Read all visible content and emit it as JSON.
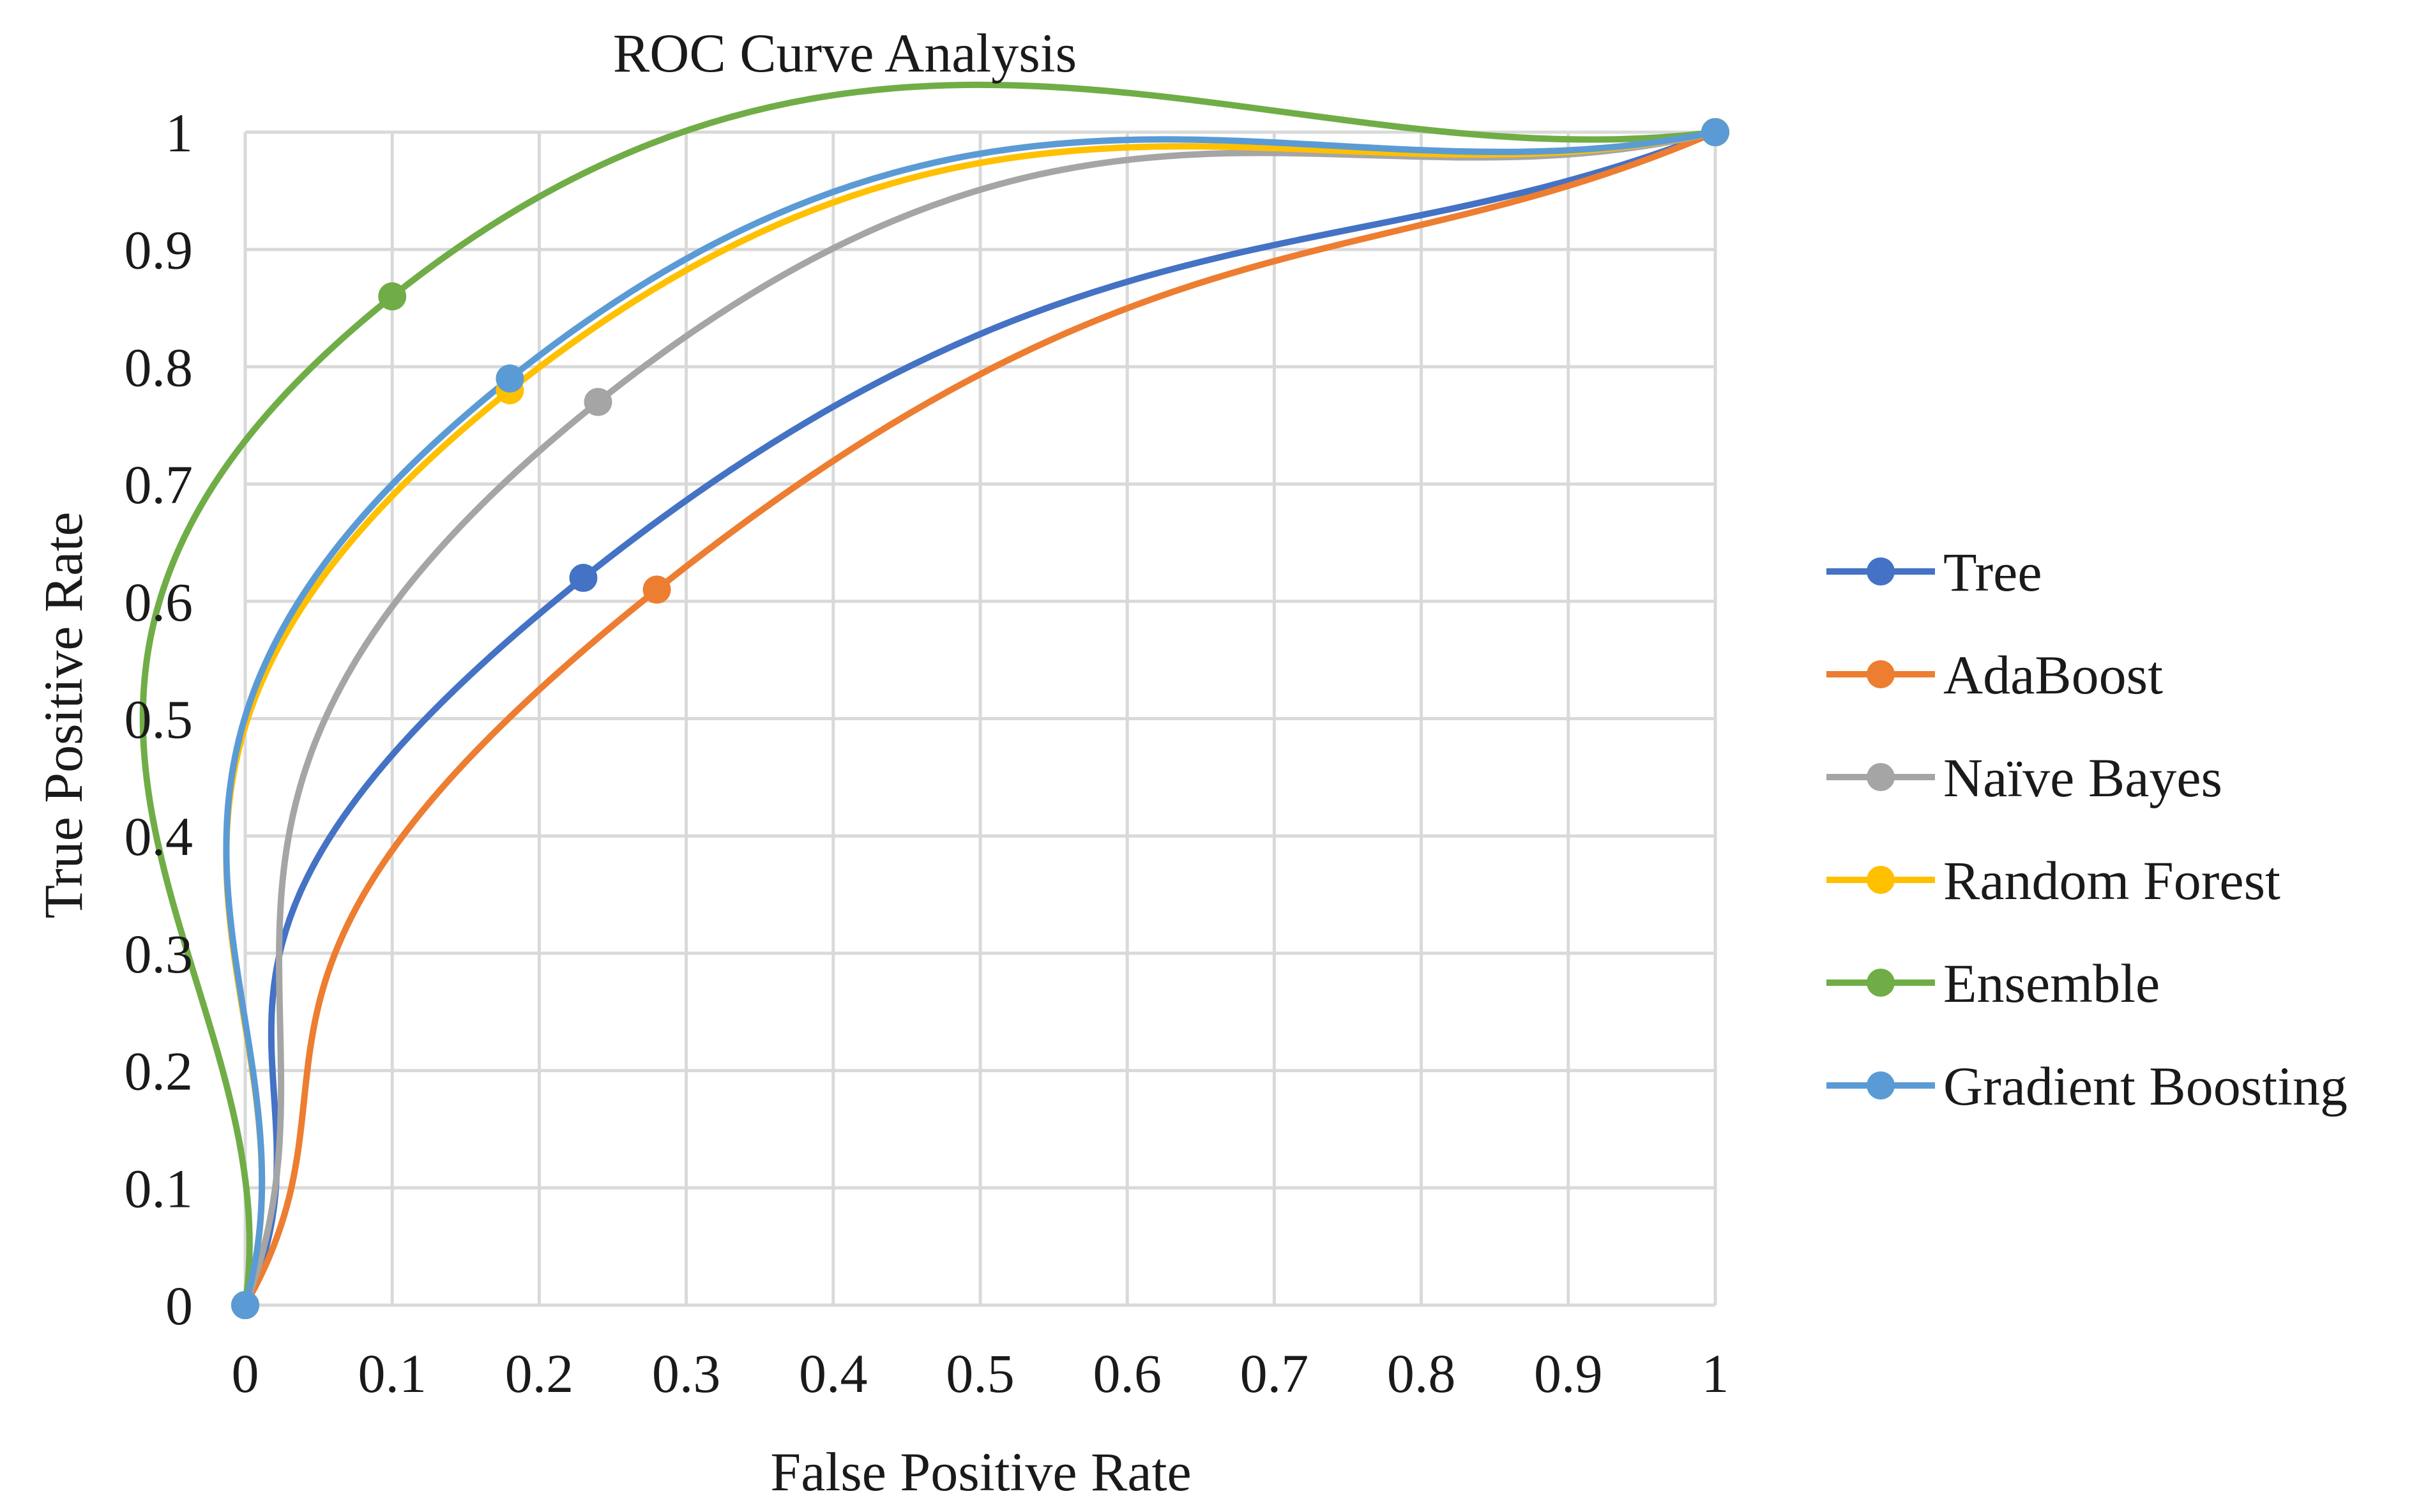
{
  "chart_data": {
    "type": "line",
    "title": "ROC Curve Analysis",
    "xlabel": "False Positive Rate",
    "ylabel": "True Positive Rate",
    "xlim": [
      0,
      1
    ],
    "ylim": [
      0,
      1
    ],
    "grid": true,
    "legend_position": "right",
    "x_ticks": [
      "0",
      "0.1",
      "0.2",
      "0.3",
      "0.4",
      "0.5",
      "0.6",
      "0.7",
      "0.8",
      "0.9",
      "1"
    ],
    "y_ticks": [
      "0",
      "0.1",
      "0.2",
      "0.3",
      "0.4",
      "0.5",
      "0.6",
      "0.7",
      "0.8",
      "0.9",
      "1"
    ],
    "series": [
      {
        "name": "Tree",
        "color": "#4472C4",
        "x": [
          0,
          0.23,
          1
        ],
        "y": [
          0,
          0.62,
          1
        ]
      },
      {
        "name": "AdaBoost",
        "color": "#ED7D31",
        "x": [
          0,
          0.28,
          1
        ],
        "y": [
          0,
          0.61,
          1
        ]
      },
      {
        "name": "Naïve Bayes",
        "color": "#A5A5A5",
        "x": [
          0,
          0.24,
          1
        ],
        "y": [
          0,
          0.77,
          1
        ]
      },
      {
        "name": "Random Forest",
        "color": "#FFC000",
        "x": [
          0,
          0.18,
          1
        ],
        "y": [
          0,
          0.78,
          1
        ]
      },
      {
        "name": "Ensemble",
        "color": "#70AD47",
        "x": [
          0,
          0.1,
          1
        ],
        "y": [
          0,
          0.86,
          1
        ]
      },
      {
        "name": "Gradient Boosting",
        "color": "#5B9BD5",
        "x": [
          0,
          0.18,
          1
        ],
        "y": [
          0,
          0.79,
          1
        ]
      }
    ]
  }
}
